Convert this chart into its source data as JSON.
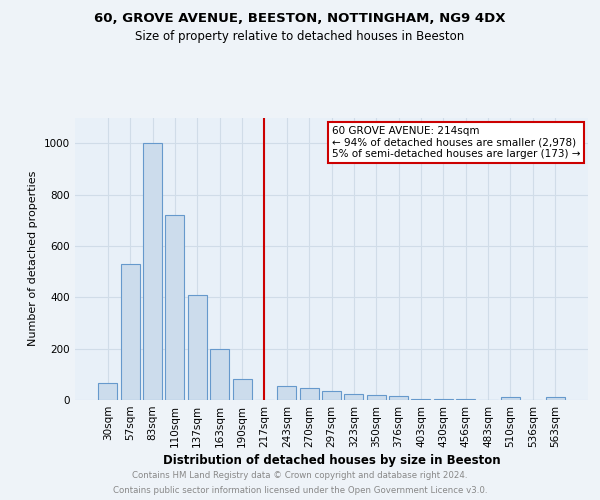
{
  "title1": "60, GROVE AVENUE, BEESTON, NOTTINGHAM, NG9 4DX",
  "title2": "Size of property relative to detached houses in Beeston",
  "xlabel": "Distribution of detached houses by size in Beeston",
  "ylabel": "Number of detached properties",
  "bin_labels": [
    "30sqm",
    "57sqm",
    "83sqm",
    "110sqm",
    "137sqm",
    "163sqm",
    "190sqm",
    "217sqm",
    "243sqm",
    "270sqm",
    "297sqm",
    "323sqm",
    "350sqm",
    "376sqm",
    "403sqm",
    "430sqm",
    "456sqm",
    "483sqm",
    "510sqm",
    "536sqm",
    "563sqm"
  ],
  "bar_values": [
    65,
    530,
    1000,
    720,
    410,
    200,
    80,
    0,
    55,
    45,
    35,
    25,
    20,
    15,
    5,
    5,
    5,
    0,
    10,
    0,
    10
  ],
  "bar_color": "#ccdcec",
  "bar_edge_color": "#6699cc",
  "vline_x": 7,
  "annotation_text_line1": "60 GROVE AVENUE: 214sqm",
  "annotation_text_line2": "← 94% of detached houses are smaller (2,978)",
  "annotation_text_line3": "5% of semi-detached houses are larger (173) →",
  "annotation_box_facecolor": "#ffffff",
  "annotation_box_edgecolor": "#cc0000",
  "vline_color": "#cc0000",
  "footer1": "Contains HM Land Registry data © Crown copyright and database right 2024.",
  "footer2": "Contains public sector information licensed under the Open Government Licence v3.0.",
  "ylim": [
    0,
    1100
  ],
  "yticks": [
    0,
    200,
    400,
    600,
    800,
    1000
  ],
  "background_color": "#eef3f8",
  "plot_bg_color": "#e8f0f8",
  "grid_color": "#d0dce8",
  "title1_fontsize": 9.5,
  "title2_fontsize": 8.5,
  "ylabel_fontsize": 8,
  "xlabel_fontsize": 8.5,
  "tick_fontsize": 7.5,
  "footer_fontsize": 6.2,
  "footer_color": "#888888"
}
